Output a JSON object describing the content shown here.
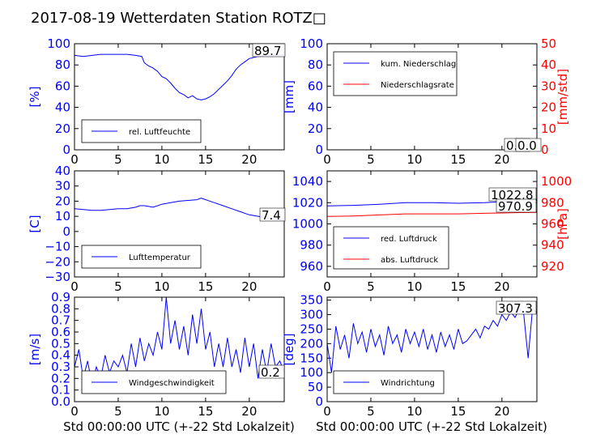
{
  "title": "2017-08-19 Wetterdaten Station ROTZ□",
  "x_label": "Std 00:00:00 UTC (+-22 Std Lokalzeit)",
  "chart_data": [
    {
      "type": "line",
      "xlim": [
        0,
        24
      ],
      "ylim": [
        0,
        100
      ],
      "xticks": [
        "0",
        "5",
        "10",
        "15",
        "20"
      ],
      "yticks": [
        "0",
        "20",
        "40",
        "60",
        "80",
        "100"
      ],
      "ylabel": "[%]",
      "legend_placement": "lower-left",
      "annotation": "89.7",
      "series": [
        {
          "name": "rel. Luftfeuchte",
          "color": "#0000ff",
          "x": [
            0,
            1,
            2,
            3,
            4,
            5,
            6,
            7,
            7.7,
            8,
            8.5,
            9,
            9.5,
            10,
            10.5,
            11,
            11.5,
            12,
            12.5,
            13,
            13.5,
            14,
            14.5,
            15,
            15.5,
            16,
            16.5,
            17,
            17.5,
            18,
            18.5,
            19,
            19.5,
            20,
            21,
            22,
            23,
            24
          ],
          "y": [
            89,
            88,
            89,
            90,
            90,
            90,
            90,
            89,
            88,
            82,
            79,
            77,
            74,
            69,
            67,
            63,
            58,
            54,
            52,
            49,
            51,
            48,
            47,
            48,
            50,
            53,
            57,
            61,
            65,
            70,
            76,
            80,
            83,
            86,
            88,
            89,
            89,
            90
          ]
        }
      ]
    },
    {
      "type": "line",
      "xlim": [
        0,
        24
      ],
      "ylim": [
        0,
        100
      ],
      "ylim_right": [
        0,
        50
      ],
      "xticks": [
        "0",
        "5",
        "10",
        "15",
        "20"
      ],
      "yticks": [
        "0",
        "20",
        "40",
        "60",
        "80",
        "100"
      ],
      "yticks_right": [
        "0",
        "10",
        "20",
        "30",
        "40",
        "50"
      ],
      "ylabel": "[mm]",
      "ylabel_right": "[mm/std]",
      "legend_placement": "upper-left",
      "annotation": "0.0",
      "annotation2": "0.0",
      "series": [
        {
          "name": "kum. Niederschlag",
          "color": "#0000ff",
          "x": [
            0,
            24
          ],
          "y": [
            0,
            0
          ]
        },
        {
          "name": "Niederschlagsrate",
          "color": "#ff0000",
          "x": [
            0,
            24
          ],
          "y": [
            0,
            0
          ]
        }
      ]
    },
    {
      "type": "line",
      "xlim": [
        0,
        24
      ],
      "ylim": [
        -30,
        40
      ],
      "xticks": [
        "0",
        "5",
        "10",
        "15",
        "20"
      ],
      "yticks": [
        "−30",
        "−20",
        "−10",
        "0",
        "10",
        "20",
        "30",
        "40"
      ],
      "ylabel": "[C]",
      "legend_placement": "lower-left",
      "annotation": "7.4",
      "series": [
        {
          "name": "Lufttemperatur",
          "color": "#0000ff",
          "x": [
            0,
            1,
            2,
            3,
            4,
            5,
            6,
            7,
            7.5,
            8,
            9,
            10,
            11,
            12,
            13,
            14,
            14.5,
            15,
            16,
            17,
            18,
            19,
            20,
            21,
            22,
            23,
            24
          ],
          "y": [
            15,
            14.5,
            14,
            14,
            14.5,
            15,
            15,
            16,
            17,
            17,
            16,
            18,
            19,
            20,
            20.5,
            21,
            22,
            21,
            19,
            17,
            15,
            13,
            11,
            10,
            9,
            8,
            7.4
          ]
        }
      ]
    },
    {
      "type": "line",
      "xlim": [
        0,
        24
      ],
      "ylim": [
        950,
        1050
      ],
      "ylim_right": [
        910,
        1010
      ],
      "xticks": [
        "0",
        "5",
        "10",
        "15",
        "20"
      ],
      "yticks": [
        "960",
        "980",
        "1000",
        "1020",
        "1040"
      ],
      "yticks_right": [
        "920",
        "940",
        "960",
        "980",
        "1000"
      ],
      "ylabel_right": "[hPa]",
      "legend_placement": "lower-left",
      "annotation": "1022.8",
      "annotation2": "970.9",
      "series": [
        {
          "name": "red. Luftdruck",
          "color": "#0000ff",
          "x": [
            0,
            3,
            6,
            9,
            12,
            15,
            18,
            20,
            22,
            24
          ],
          "y": [
            1017,
            1017.5,
            1018.5,
            1020,
            1020,
            1019.5,
            1020,
            1021,
            1022.5,
            1022.8
          ]
        },
        {
          "name": "abs. Luftdruck",
          "color": "#ff0000",
          "x": [
            0,
            3,
            6,
            9,
            12,
            15,
            18,
            20,
            22,
            24
          ],
          "y": [
            967,
            967.5,
            968.5,
            969.5,
            969.5,
            969.5,
            970,
            970.3,
            970.7,
            970.9
          ]
        }
      ]
    },
    {
      "type": "line",
      "xlim": [
        0,
        24
      ],
      "ylim": [
        0,
        0.9
      ],
      "xticks": [
        "0",
        "5",
        "10",
        "15",
        "20"
      ],
      "yticks": [
        "0.0",
        "0.1",
        "0.2",
        "0.3",
        "0.4",
        "0.5",
        "0.6",
        "0.7",
        "0.8",
        "0.9"
      ],
      "ylabel": "[m/s]",
      "legend_placement": "lower-left",
      "annotation": "0.2",
      "series": [
        {
          "name": "Windgeschwindigkeit",
          "color": "#0000ff",
          "x": [
            0,
            0.5,
            1,
            1.5,
            2,
            2.5,
            3,
            3.5,
            4,
            4.5,
            5,
            5.5,
            6,
            6.5,
            7,
            7.5,
            8,
            8.5,
            9,
            9.5,
            10,
            10.5,
            11,
            11.5,
            12,
            12.5,
            13,
            13.5,
            14,
            14.5,
            15,
            15.5,
            16,
            16.5,
            17,
            17.5,
            18,
            18.5,
            19,
            19.5,
            20,
            20.5,
            21,
            21.5,
            22,
            22.5,
            23,
            23.5,
            24
          ],
          "y": [
            0.3,
            0.45,
            0.2,
            0.35,
            0.15,
            0.3,
            0.2,
            0.4,
            0.25,
            0.35,
            0.3,
            0.4,
            0.25,
            0.5,
            0.3,
            0.55,
            0.35,
            0.5,
            0.4,
            0.6,
            0.45,
            0.9,
            0.5,
            0.7,
            0.45,
            0.65,
            0.4,
            0.75,
            0.5,
            0.8,
            0.45,
            0.6,
            0.3,
            0.5,
            0.3,
            0.55,
            0.3,
            0.45,
            0.25,
            0.55,
            0.3,
            0.5,
            0.2,
            0.45,
            0.25,
            0.5,
            0.3,
            0.35,
            0.25
          ]
        }
      ]
    },
    {
      "type": "line",
      "xlim": [
        0,
        24
      ],
      "ylim": [
        0,
        360
      ],
      "xticks": [
        "0",
        "5",
        "10",
        "15",
        "20"
      ],
      "yticks": [
        "0",
        "50",
        "100",
        "150",
        "200",
        "250",
        "300",
        "350"
      ],
      "ylabel": "[deg]",
      "legend_placement": "lower-left",
      "annotation": "307.3",
      "series": [
        {
          "name": "Windrichtung",
          "color": "#0000ff",
          "x": [
            0,
            0.5,
            1,
            1.5,
            2,
            2.5,
            3,
            3.5,
            4,
            4.5,
            5,
            5.5,
            6,
            6.5,
            7,
            7.5,
            8,
            8.5,
            9,
            9.5,
            10,
            10.5,
            11,
            11.5,
            12,
            12.5,
            13,
            13.5,
            14,
            14.5,
            15,
            15.5,
            16,
            16.5,
            17,
            17.5,
            18,
            18.5,
            19,
            19.5,
            20,
            20.5,
            21,
            21.5,
            22,
            22.5,
            23,
            23.5,
            24
          ],
          "y": [
            200,
            100,
            260,
            180,
            230,
            150,
            270,
            200,
            240,
            170,
            250,
            190,
            230,
            160,
            260,
            200,
            230,
            170,
            250,
            200,
            240,
            190,
            250,
            180,
            230,
            170,
            240,
            190,
            230,
            180,
            250,
            200,
            210,
            230,
            250,
            220,
            260,
            250,
            280,
            260,
            300,
            280,
            310,
            290,
            320,
            300,
            150,
            320,
            307
          ]
        }
      ]
    }
  ]
}
